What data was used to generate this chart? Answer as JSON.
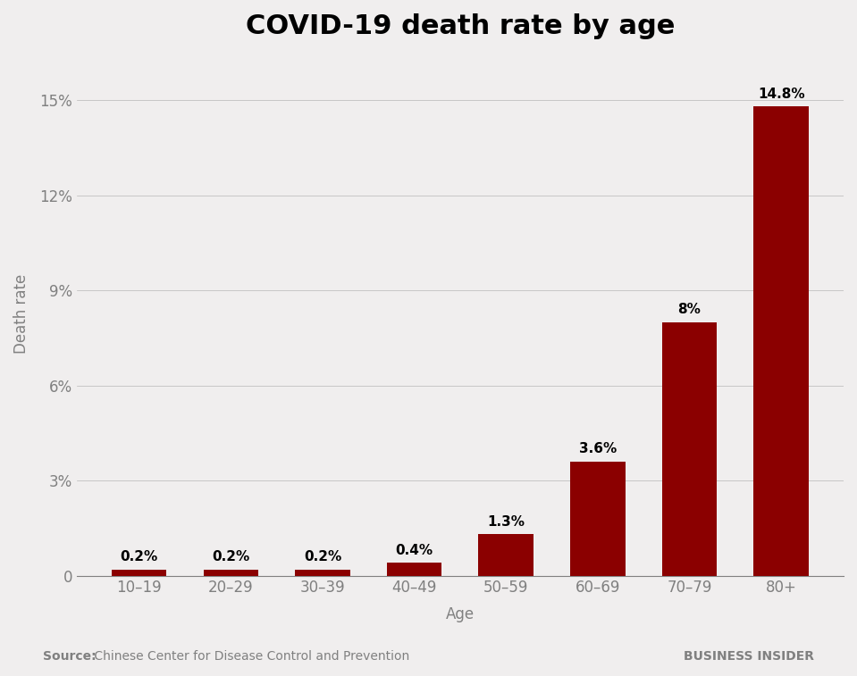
{
  "title": "COVID-19 death rate by age",
  "categories": [
    "10–19",
    "20–29",
    "30–39",
    "40–49",
    "50–59",
    "60–69",
    "70–79",
    "80+"
  ],
  "values": [
    0.2,
    0.2,
    0.2,
    0.4,
    1.3,
    3.6,
    8.0,
    14.8
  ],
  "labels": [
    "0.2%",
    "0.2%",
    "0.2%",
    "0.4%",
    "1.3%",
    "3.6%",
    "8%",
    "14.8%"
  ],
  "bar_color": "#8B0000",
  "background_color": "#f0eeee",
  "ylabel": "Death rate",
  "xlabel": "Age",
  "yticks": [
    0,
    3,
    6,
    9,
    12,
    15
  ],
  "ytick_labels": [
    "0",
    "3%",
    "6%",
    "9%",
    "12%",
    "15%"
  ],
  "ylim": [
    0,
    16.5
  ],
  "source_label": "Source:",
  "source_text": " Chinese Center for Disease Control and Prevention",
  "brand_text": "BUSINESS INSIDER",
  "title_fontsize": 22,
  "axis_label_fontsize": 12,
  "tick_fontsize": 12,
  "bar_label_fontsize": 11,
  "source_fontsize": 10,
  "brand_fontsize": 10
}
